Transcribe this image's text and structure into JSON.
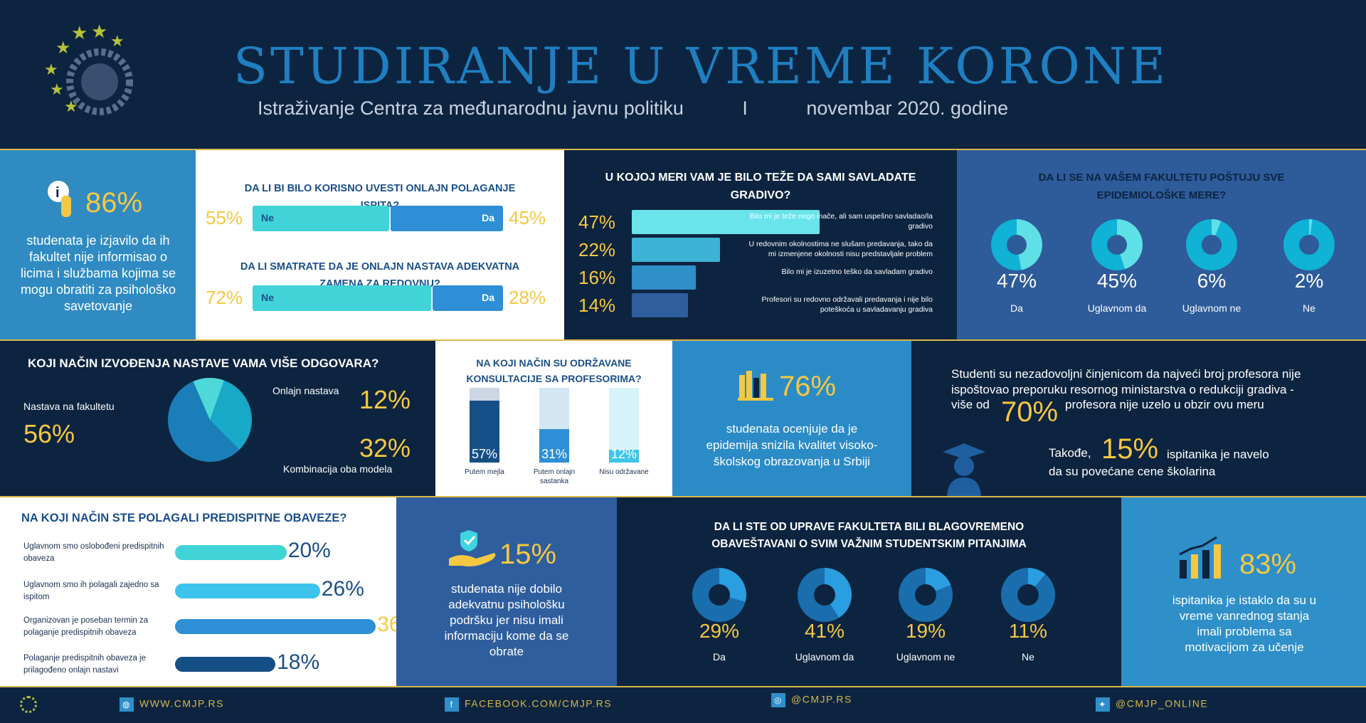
{
  "header": {
    "title": "STUDIRANJE U VREME KORONE",
    "subtitle_left": "Istraživanje Centra za međunarodnu javnu politiku",
    "subtitle_sep": "I",
    "subtitle_right": "novembar 2020. godine"
  },
  "stats": {
    "s86": {
      "value": "86%",
      "text": "studenata je izjavilo da ih fakultet nije informisao o licima i službama kojima se mogu obratiti za psihološko savetovanje",
      "icon": "info-hand-icon"
    },
    "s76": {
      "value": "76%",
      "text": "studenata ocenjuje da je epidemija snizila kvalitet visoko-školskog obrazovanja u Srbiji",
      "icon": "books-icon"
    },
    "s70": {
      "line1": "Studenti su nezadovoljni činjenicom da najveći broj profesora nije ispoštovao preporuku resornog ministarstva o redukciji gradiva -",
      "pre": "više od",
      "value": "70%",
      "post": "profesora nije uzelo u obzir ovu meru",
      "icon": "graduate-icon"
    },
    "s15a": {
      "pre": "Takođe,",
      "value": "15%",
      "post": "ispitanika je navelo da su povećane cene školarina"
    },
    "s15b": {
      "value": "15%",
      "text": "studenata nije dobilo adekvatnu psihološku podršku jer nisu imali informaciju kome da se obrate",
      "icon": "hand-check-icon"
    },
    "s83": {
      "value": "83%",
      "text": "ispitanika je istaklo da su u vreme vanrednog stanja imali problema sa motivacijom za učenje",
      "icon": "growth-chart-icon"
    }
  },
  "colors": {
    "navy": "#0d2440",
    "yellow": "#f5c842",
    "accent": "#1f7fc0"
  },
  "chart_data": [
    {
      "type": "bar",
      "title": "DA LI BI BILO KORISNO UVESTI ONLAJN POLAGANJE ISPITA?",
      "categories": [
        "Ne",
        "Da"
      ],
      "values": [
        55,
        45
      ]
    },
    {
      "type": "bar",
      "title": "DA LI SMATRATE DA JE ONLAJN NASTAVA ADEKVATNA ZAMENA ZA REDOVNU?",
      "categories": [
        "Ne",
        "Da"
      ],
      "values": [
        72,
        28
      ]
    },
    {
      "type": "bar",
      "title": "U KOJOJ MERI VAM JE BILO TEŽE DA SAMI SAVLADATE GRADIVO?",
      "categories": [
        "Bilo mi je teže nego inače, ali sam uspešno savladao/la gradivo",
        "U redovnim okolnostima ne slušam predavanja, tako da mi izmenjene okolnosti nisu predstavljale problem",
        "Bilo mi je izuzetno teško da savladam gradivo",
        "Profesori su redovno održavali predavanja i nije bilo poteškoća u savladavanju gradiva"
      ],
      "values": [
        47,
        22,
        16,
        14
      ]
    },
    {
      "type": "pie",
      "title": "DA LI SE NA VAŠEM FAKULTETU POŠTUJU SVE EPIDEMIOLOŠKE MERE?",
      "categories": [
        "Da",
        "Uglavnom da",
        "Uglavnom ne",
        "Ne"
      ],
      "values": [
        47,
        45,
        6,
        2
      ]
    },
    {
      "type": "pie",
      "title": "KOJI NAČIN IZVOĐENJA NASTAVE VAMA VIŠE ODGOVARA?",
      "categories": [
        "Nastava na fakultetu",
        "Onlajn nastava",
        "Kombinacija oba modela"
      ],
      "values": [
        56,
        12,
        32
      ]
    },
    {
      "type": "bar",
      "title": "NA KOJI NAČIN SU ODRŽAVANE KONSULTACIJE SA PROFESORIMA?",
      "categories": [
        "Putem mejla",
        "Putem onlajn sastanka",
        "Nisu održavane"
      ],
      "values": [
        57,
        31,
        12
      ]
    },
    {
      "type": "bar",
      "title": "NA KOJI NAČIN STE POLAGALI PREDISPITNE OBAVEZE?",
      "categories": [
        "Uglavnom smo oslobođeni predispitnih obaveza",
        "Uglavnom smo ih polagali zajedno sa ispitom",
        "Organizovan je poseban termin za polaganje predispitnih obaveza",
        "Polaganje predispitnih obaveza je prilagođeno onlajn nastavi"
      ],
      "values": [
        20,
        26,
        36,
        18
      ]
    },
    {
      "type": "pie",
      "title": "DA LI STE OD UPRAVE FAKULTETA BILI BLAGOVREMENO OBAVEŠTAVANI O SVIM VAŽNIM STUDENTSKIM PITANJIMA",
      "categories": [
        "Da",
        "Uglavnom da",
        "Uglavnom ne",
        "Ne"
      ],
      "values": [
        29,
        41,
        19,
        11
      ]
    }
  ],
  "footer": {
    "web": "WWW.CMJP.RS",
    "facebook": "FACEBOOK.COM/CMJP.RS",
    "instagram": "@CMJP.RS",
    "twitter": "@CMJP_ONLINE"
  }
}
